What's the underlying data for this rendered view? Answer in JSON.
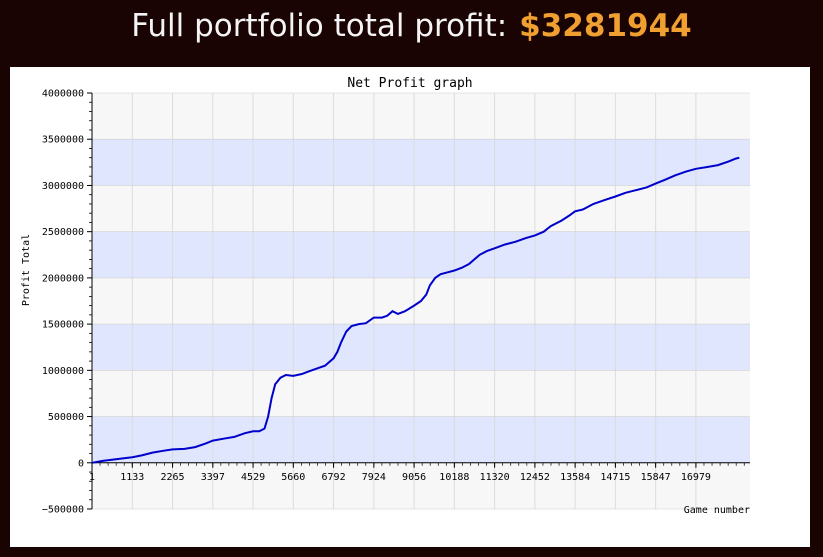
{
  "header": {
    "prefix": "Full portfolio total profit:",
    "amount": "$3281944"
  },
  "colors": {
    "background": "#1a0303",
    "amount": "#f0a030",
    "line": "#0000cc",
    "band_dark": "#dfe6fd",
    "band_light": "#f7f7f7"
  },
  "chart_data": {
    "type": "line",
    "title": "Net Profit graph",
    "xlabel": "Game number",
    "ylabel": "Profit Total",
    "xlim": [
      0,
      18500
    ],
    "ylim": [
      -500000,
      4000000
    ],
    "grid": true,
    "x_ticks": [
      1,
      1133,
      2265,
      3397,
      4529,
      5660,
      6792,
      7924,
      9056,
      10188,
      11320,
      12452,
      13584,
      14715,
      15847,
      16979
    ],
    "y_ticks": [
      -500000,
      0,
      500000,
      1000000,
      1500000,
      2000000,
      2500000,
      3000000,
      3500000,
      4000000
    ],
    "series": [
      {
        "points": [
          [
            0,
            0
          ],
          [
            300,
            20000
          ],
          [
            700,
            40000
          ],
          [
            1133,
            60000
          ],
          [
            1400,
            80000
          ],
          [
            1700,
            110000
          ],
          [
            2000,
            130000
          ],
          [
            2265,
            145000
          ],
          [
            2600,
            150000
          ],
          [
            2900,
            170000
          ],
          [
            3200,
            210000
          ],
          [
            3397,
            240000
          ],
          [
            3700,
            260000
          ],
          [
            4000,
            280000
          ],
          [
            4300,
            320000
          ],
          [
            4529,
            340000
          ],
          [
            4700,
            340000
          ],
          [
            4850,
            370000
          ],
          [
            4950,
            500000
          ],
          [
            5050,
            700000
          ],
          [
            5150,
            850000
          ],
          [
            5300,
            920000
          ],
          [
            5450,
            950000
          ],
          [
            5660,
            940000
          ],
          [
            5900,
            960000
          ],
          [
            6100,
            990000
          ],
          [
            6400,
            1030000
          ],
          [
            6550,
            1050000
          ],
          [
            6700,
            1100000
          ],
          [
            6792,
            1130000
          ],
          [
            6900,
            1200000
          ],
          [
            7000,
            1300000
          ],
          [
            7150,
            1420000
          ],
          [
            7300,
            1480000
          ],
          [
            7500,
            1500000
          ],
          [
            7700,
            1510000
          ],
          [
            7924,
            1570000
          ],
          [
            8150,
            1570000
          ],
          [
            8300,
            1590000
          ],
          [
            8450,
            1640000
          ],
          [
            8600,
            1610000
          ],
          [
            8800,
            1640000
          ],
          [
            9056,
            1700000
          ],
          [
            9250,
            1750000
          ],
          [
            9400,
            1820000
          ],
          [
            9500,
            1920000
          ],
          [
            9650,
            2000000
          ],
          [
            9800,
            2040000
          ],
          [
            10000,
            2060000
          ],
          [
            10188,
            2080000
          ],
          [
            10400,
            2110000
          ],
          [
            10600,
            2150000
          ],
          [
            10900,
            2250000
          ],
          [
            11100,
            2290000
          ],
          [
            11320,
            2320000
          ],
          [
            11600,
            2360000
          ],
          [
            11900,
            2390000
          ],
          [
            12200,
            2430000
          ],
          [
            12452,
            2460000
          ],
          [
            12700,
            2500000
          ],
          [
            12900,
            2560000
          ],
          [
            13200,
            2620000
          ],
          [
            13400,
            2670000
          ],
          [
            13584,
            2720000
          ],
          [
            13800,
            2740000
          ],
          [
            14100,
            2800000
          ],
          [
            14400,
            2840000
          ],
          [
            14715,
            2880000
          ],
          [
            15000,
            2920000
          ],
          [
            15300,
            2950000
          ],
          [
            15600,
            2980000
          ],
          [
            15847,
            3020000
          ],
          [
            16100,
            3060000
          ],
          [
            16400,
            3110000
          ],
          [
            16700,
            3150000
          ],
          [
            16979,
            3180000
          ],
          [
            17300,
            3200000
          ],
          [
            17600,
            3220000
          ],
          [
            17900,
            3260000
          ],
          [
            18100,
            3290000
          ],
          [
            18200,
            3300000
          ]
        ]
      }
    ]
  }
}
